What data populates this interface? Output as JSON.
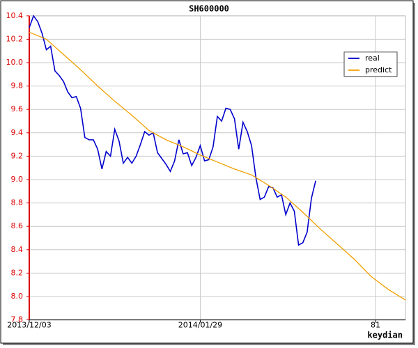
{
  "chart_data": {
    "type": "line",
    "title": "SH600000",
    "x_label": "keydian",
    "xlim": [
      0,
      88
    ],
    "ylim": [
      7.8,
      10.4
    ],
    "xticks": [
      {
        "value": 0,
        "label": "2013/12/03"
      },
      {
        "value": 40,
        "label": "2014/01/29"
      },
      81
    ],
    "yticks": [
      7.8,
      {
        "value": 8,
        "label": "8.0"
      },
      8.2,
      8.4,
      8.6,
      8.8,
      {
        "value": 9,
        "label": "9.0"
      },
      9.2,
      9.4,
      9.6,
      9.8,
      {
        "value": 10,
        "label": "10.0"
      },
      10.2,
      10.4
    ],
    "grid": true,
    "legend": "upper right",
    "series": [
      {
        "name": "real",
        "color": "#0000cc",
        "x": [
          0,
          1,
          2,
          3,
          4,
          5,
          6,
          7,
          8,
          9,
          10,
          11,
          12,
          13,
          14,
          15,
          16,
          17,
          18,
          19,
          20,
          21,
          22,
          23,
          24,
          25,
          26,
          27,
          28,
          29,
          30,
          31,
          32,
          33,
          34,
          35,
          36,
          37,
          38,
          39,
          40,
          41,
          42,
          43,
          44,
          45,
          46,
          47,
          48,
          49,
          50,
          51,
          52,
          53,
          54,
          55,
          56,
          57,
          58,
          59,
          60,
          61,
          62,
          63,
          64,
          65,
          66,
          67
        ],
        "values": [
          10.3,
          10.4,
          10.35,
          10.25,
          10.11,
          10.14,
          9.93,
          9.89,
          9.84,
          9.75,
          9.7,
          9.71,
          9.61,
          9.36,
          9.34,
          9.34,
          9.26,
          9.09,
          9.24,
          9.2,
          9.43,
          9.33,
          9.14,
          9.19,
          9.14,
          9.2,
          9.3,
          9.41,
          9.38,
          9.4,
          9.23,
          9.18,
          9.13,
          9.07,
          9.16,
          9.34,
          9.22,
          9.23,
          9.12,
          9.19,
          9.29,
          9.16,
          9.17,
          9.28,
          9.54,
          9.5,
          9.61,
          9.6,
          9.52,
          9.26,
          9.49,
          9.41,
          9.29,
          9.02,
          8.83,
          8.85,
          8.94,
          8.93,
          8.85,
          8.87,
          8.7,
          8.8,
          8.73,
          8.44,
          8.46,
          8.55,
          8.84,
          8.99
        ]
      },
      {
        "name": "predict",
        "color": "#f0a000",
        "x": [
          0,
          4,
          8,
          12,
          16,
          20,
          24,
          28,
          32,
          36,
          40,
          44,
          48,
          52,
          56,
          60,
          64,
          68,
          72,
          76,
          80,
          84,
          88
        ],
        "values": [
          10.26,
          10.2,
          10.07,
          9.94,
          9.8,
          9.67,
          9.55,
          9.42,
          9.34,
          9.28,
          9.21,
          9.15,
          9.09,
          9.04,
          8.95,
          8.85,
          8.72,
          8.58,
          8.45,
          8.32,
          8.17,
          8.06,
          7.97
        ]
      }
    ]
  }
}
